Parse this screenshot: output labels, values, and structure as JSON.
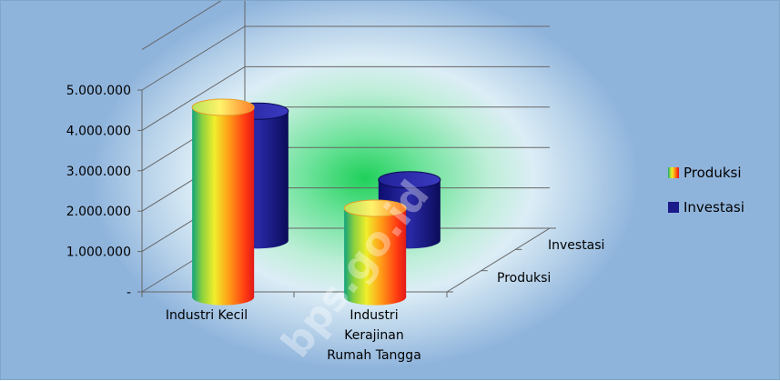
{
  "chart_data": {
    "type": "bar",
    "categories": [
      "Industri Kecil",
      "Industri Kerajinan Rumah Tangga"
    ],
    "category_lines": [
      [
        "Industri Kecil"
      ],
      [
        "Industri",
        "Kerajinan",
        "Rumah Tangga"
      ]
    ],
    "series": [
      {
        "name": "Produksi",
        "values": [
          4700000,
          2200000
        ]
      },
      {
        "name": "Investasi",
        "values": [
          3200000,
          1500000
        ]
      }
    ],
    "depth_labels": [
      "Produksi",
      "Investasi"
    ],
    "y_ticks": [
      0,
      1000000,
      2000000,
      3000000,
      4000000,
      5000000
    ],
    "y_tick_labels": [
      "-",
      "1.000.000",
      "2.000.000",
      "3.000.000",
      "4.000.000",
      "5.000.000"
    ],
    "ylim": [
      0,
      6000000
    ],
    "grid": true,
    "legend_position": "right",
    "watermark": "bps.go.id",
    "colors": {
      "Produksi": "rainbow-gradient",
      "Investasi": "#1a1a8a"
    }
  }
}
